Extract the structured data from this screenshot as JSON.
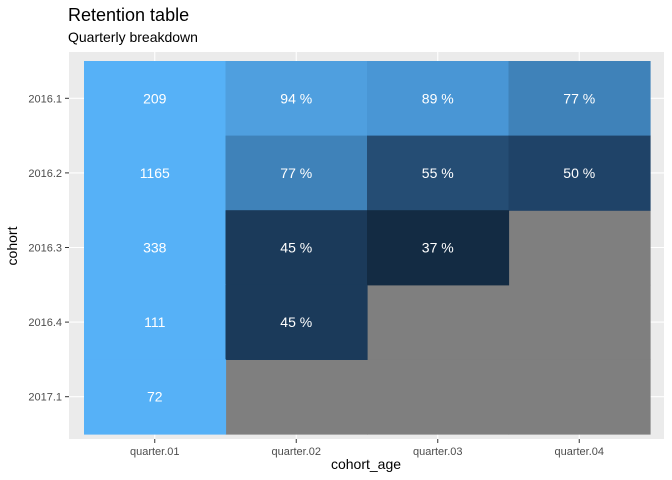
{
  "chart_data": {
    "type": "heatmap",
    "title": "Retention table",
    "subtitle": "Quarterly breakdown",
    "xlabel": "cohort_age",
    "ylabel": "cohort",
    "x_categories": [
      "quarter.01",
      "quarter.02",
      "quarter.03",
      "quarter.04"
    ],
    "y_categories": [
      "2016.1",
      "2016.2",
      "2016.3",
      "2016.4",
      "2017.1"
    ],
    "cells": [
      {
        "cohort": "2016.1",
        "age": "quarter.01",
        "label": "209",
        "fill": "#56b1f7"
      },
      {
        "cohort": "2016.1",
        "age": "quarter.02",
        "label": "94 %",
        "fill": "#4f9fdf"
      },
      {
        "cohort": "2016.1",
        "age": "quarter.03",
        "label": "89 %",
        "fill": "#4996d5"
      },
      {
        "cohort": "2016.1",
        "age": "quarter.04",
        "label": "77 %",
        "fill": "#3f82b9"
      },
      {
        "cohort": "2016.2",
        "age": "quarter.01",
        "label": "1165",
        "fill": "#56b1f7"
      },
      {
        "cohort": "2016.2",
        "age": "quarter.02",
        "label": "77 %",
        "fill": "#3f82b9"
      },
      {
        "cohort": "2016.2",
        "age": "quarter.03",
        "label": "55 %",
        "fill": "#254d74"
      },
      {
        "cohort": "2016.2",
        "age": "quarter.04",
        "label": "50 %",
        "fill": "#1f4368"
      },
      {
        "cohort": "2016.3",
        "age": "quarter.01",
        "label": "338",
        "fill": "#56b1f7"
      },
      {
        "cohort": "2016.3",
        "age": "quarter.02",
        "label": "45 %",
        "fill": "#1b3a5a"
      },
      {
        "cohort": "2016.3",
        "age": "quarter.03",
        "label": "37 %",
        "fill": "#132b43"
      },
      {
        "cohort": "2016.4",
        "age": "quarter.01",
        "label": "111",
        "fill": "#56b1f7"
      },
      {
        "cohort": "2016.4",
        "age": "quarter.02",
        "label": "45 %",
        "fill": "#1b3a5a"
      },
      {
        "cohort": "2017.1",
        "age": "quarter.01",
        "label": "72",
        "fill": "#56b1f7"
      }
    ],
    "na_fill": "#7f7f7f",
    "panel_background": "#ebebeb",
    "grid_color": "#ffffff",
    "legend": "none"
  }
}
